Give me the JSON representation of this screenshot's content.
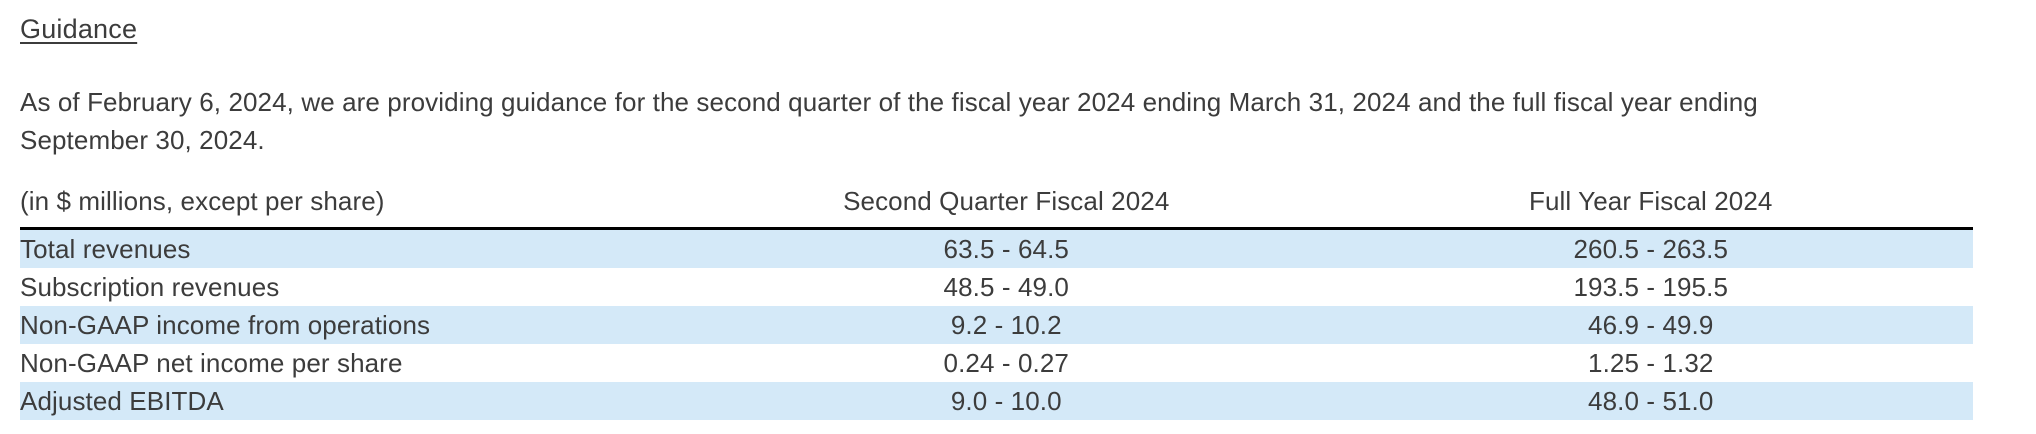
{
  "heading": "Guidance",
  "intro": "As of February 6, 2024, we are providing guidance for the second quarter of the fiscal year 2024 ending March 31, 2024 and the full fiscal year ending September 30, 2024.",
  "table": {
    "unit_note": "(in $ millions, except per share)",
    "columns": [
      "Second Quarter Fiscal 2024",
      "Full Year Fiscal 2024"
    ],
    "rows": [
      {
        "label": "Total revenues",
        "q2": "63.5 - 64.5",
        "fy": "260.5 - 263.5"
      },
      {
        "label": "Subscription revenues",
        "q2": "48.5 - 49.0",
        "fy": "193.5 - 195.5"
      },
      {
        "label": "Non-GAAP income from operations",
        "q2": "9.2 - 10.2",
        "fy": "46.9 - 49.9"
      },
      {
        "label": "Non-GAAP net income per share",
        "q2": "0.24 - 0.27",
        "fy": "1.25 - 1.32"
      },
      {
        "label": "Adjusted EBITDA",
        "q2": "9.0 - 10.0",
        "fy": "48.0 - 51.0"
      }
    ]
  },
  "colors": {
    "row_highlight": "#d4e9f8",
    "text": "#3c3c3c",
    "rule": "#000000"
  }
}
